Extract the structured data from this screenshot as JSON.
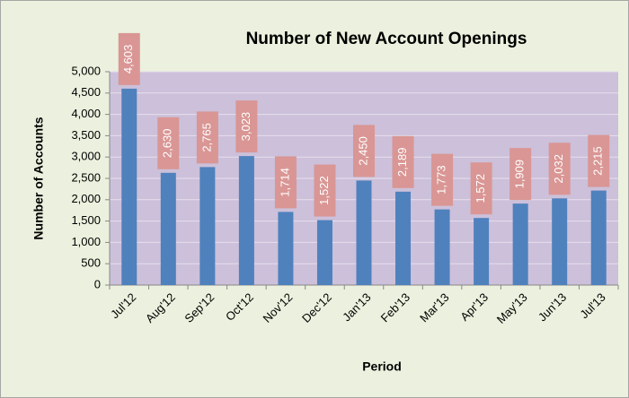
{
  "chart_data": {
    "type": "bar",
    "title": "Number of New Account Openings",
    "x_label": "Period",
    "y_label": "Number of Accounts",
    "categories": [
      "Jul'12",
      "Aug'12",
      "Sep'12",
      "Oct'12",
      "Nov'12",
      "Dec'12",
      "Jan'13",
      "Feb'13",
      "Mar'13",
      "Apr'13",
      "May'13",
      "Jun'13",
      "Jul'13"
    ],
    "values": [
      4603,
      2630,
      2765,
      3023,
      1714,
      1522,
      2450,
      2189,
      1773,
      1572,
      1909,
      2032,
      2215
    ],
    "value_labels": [
      "4,603",
      "2,630",
      "2,765",
      "3,023",
      "1,714",
      "1,522",
      "2,450",
      "2,189",
      "1,773",
      "1,572",
      "1,909",
      "2,032",
      "2,215"
    ],
    "color": "#4f81bd",
    "ylim": [
      0,
      5000
    ],
    "yticks": [
      0,
      500,
      {
        "value": 1000,
        "label": "1,000"
      },
      {
        "value": 1500,
        "label": "1,500"
      },
      {
        "value": 2000,
        "label": "2,000"
      },
      {
        "value": 2500,
        "label": "2,500"
      },
      {
        "value": 3000,
        "label": "3,000"
      },
      {
        "value": 3500,
        "label": "3,500"
      },
      {
        "value": 4000,
        "label": "4,000"
      },
      {
        "value": 4500,
        "label": "4,500"
      },
      {
        "value": 5000,
        "label": "5,000"
      }
    ],
    "grid": true
  }
}
